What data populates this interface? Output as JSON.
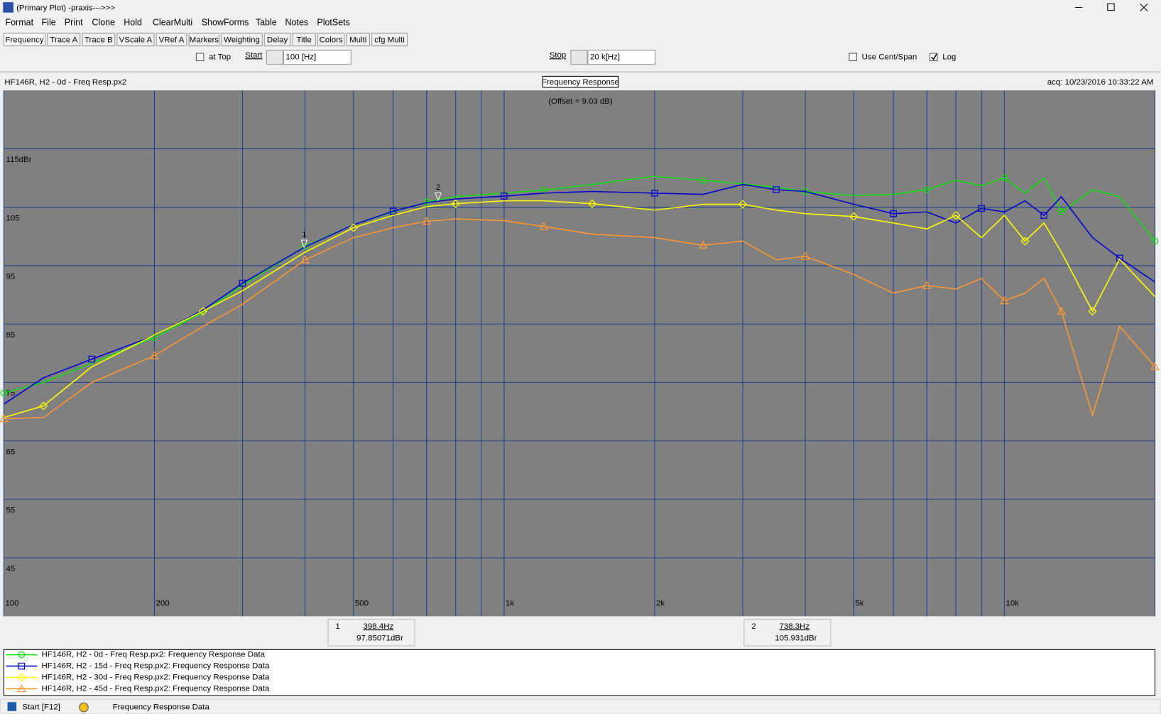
{
  "window": {
    "title": "(Primary Plot) -praxis--->>>"
  },
  "menu": [
    "Format",
    "File",
    "Print",
    "Clone",
    "Hold",
    "ClearMulti",
    "ShowForms",
    "Table",
    "Notes",
    "PlotSets"
  ],
  "tabs": [
    "Frequency",
    "Trace A",
    "Trace B",
    "VScale A",
    "VRef A",
    "Markers",
    "Weighting",
    "Delay",
    "Title",
    "Colors",
    "Multi",
    "cfg Multi"
  ],
  "controls": {
    "at_top": "at Top",
    "start_label": "Start",
    "start_value": "100 [Hz]",
    "stop_label": "Stop",
    "stop_value": "20 k[Hz]",
    "cent_span": "Use Cent/Span",
    "log": "Log"
  },
  "plot_header": {
    "left": "HF146R, H2 - 0d - Freq Resp.px2",
    "center": "Frequency Response",
    "right": "acq: 10/23/2016 10:33:22 AM"
  },
  "chart_data": {
    "type": "line",
    "annotation": "(Offset = 9.03 dB)",
    "xscale": "log",
    "grid": true,
    "xlim": [
      100,
      20000
    ],
    "ylim": [
      35,
      125
    ],
    "xticks": [
      100,
      200,
      500,
      {
        "value": 1000,
        "label": "1k"
      },
      {
        "value": 2000,
        "label": "2k"
      },
      {
        "value": 5000,
        "label": "5k"
      },
      {
        "value": 10000,
        "label": "10k"
      }
    ],
    "xgrid": [
      300,
      400,
      600,
      700,
      800,
      900,
      3000,
      4000,
      6000,
      7000,
      8000,
      9000,
      20000
    ],
    "yticks": [
      {
        "value": 115,
        "label": "115dBr"
      },
      105,
      95,
      85,
      75,
      65,
      55,
      45
    ],
    "x": [
      100,
      120,
      150,
      200,
      250,
      300,
      400,
      500,
      600,
      700,
      800,
      1000,
      1200,
      1500,
      2000,
      2500,
      3000,
      3500,
      4000,
      5000,
      6000,
      7000,
      8000,
      9000,
      10000,
      11000,
      12000,
      13000,
      15000,
      17000,
      20000
    ],
    "series": [
      {
        "name": "HF146R, H2 - 0d - Freq Resp.px2:  Frequency Response Data",
        "color": "#10e010",
        "marker": "circle",
        "values": [
          73.2,
          75,
          78.3,
          82.7,
          87,
          91.6,
          98.3,
          102,
          104.2,
          105.9,
          106.8,
          107.4,
          107.9,
          108.9,
          110.3,
          109.6,
          109,
          108.4,
          107.7,
          107,
          107.2,
          108,
          109.6,
          108.7,
          110,
          107.4,
          110,
          104.2,
          108,
          106.8,
          99.2
        ]
      },
      {
        "name": "HF146R, H2 - 15d - Freq Resp.px2:  Frequency Response Data",
        "color": "#0000d0",
        "marker": "square",
        "values": [
          71.3,
          75.8,
          79,
          83,
          87.4,
          92,
          98.2,
          102,
          104.3,
          105.8,
          106.4,
          106.9,
          107.4,
          107.7,
          107.4,
          107.2,
          108.9,
          108,
          107.7,
          105.5,
          103.9,
          104.2,
          102.3,
          104.8,
          104.2,
          106.1,
          103.6,
          106.8,
          99.8,
          96.3,
          92.2
        ]
      },
      {
        "name": "HF146R, H2 - 30d - Freq Resp.px2:  Frequency Response Data",
        "color": "#ffff00",
        "marker": "diamond",
        "values": [
          69,
          71,
          77.7,
          83.1,
          87.2,
          90.7,
          97.3,
          101.5,
          103.6,
          105.1,
          105.6,
          106.1,
          106.1,
          105.6,
          104.5,
          105.5,
          105.5,
          104.5,
          103.9,
          103.4,
          102.3,
          101.3,
          103.6,
          99.8,
          103.6,
          99.2,
          102.3,
          97.3,
          87.2,
          96.1,
          89.7
        ]
      },
      {
        "name": "HF146R, H2 - 45d - Freq Resp.px2:  Frequency Response Data",
        "color": "#ff9933",
        "marker": "triangle",
        "values": [
          68.8,
          69,
          75,
          79.6,
          84.6,
          88.4,
          96,
          99.8,
          101.5,
          102.6,
          103,
          102.7,
          101.7,
          100.4,
          99.8,
          98.5,
          99.2,
          96,
          96.6,
          93.5,
          90.3,
          91.6,
          91,
          92.8,
          89,
          90.3,
          92.8,
          87.2,
          69.4,
          84.6,
          77.7
        ]
      }
    ],
    "markers": [
      {
        "label": "1",
        "x": 398.4,
        "y": 97.85071,
        "x_label": "398.4Hz",
        "y_label": "97.85071dBr"
      },
      {
        "label": "2",
        "x": 738.3,
        "y": 105.931,
        "x_label": "738.3Hz",
        "y_label": "105.931dBr"
      }
    ]
  },
  "status": {
    "start": "Start [F12]",
    "text": "Frequency Response Data"
  }
}
